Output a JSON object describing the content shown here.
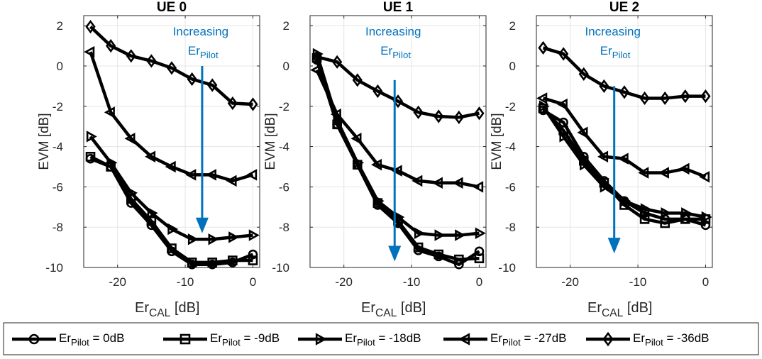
{
  "chart_data": [
    {
      "type": "line",
      "title": "UE 0",
      "xlabel": "Er",
      "xlabel_sub": "CAL",
      "xlabel_unit": " [dB]",
      "ylabel": "EVM [dB]",
      "xlim": [
        -25,
        1
      ],
      "ylim": [
        -10,
        2.5
      ],
      "xticks": [
        -20,
        -10,
        0
      ],
      "yticks": [
        2,
        0,
        -2,
        -4,
        -6,
        -8,
        -10
      ],
      "grid": true,
      "x": [
        -24,
        -21,
        -18,
        -15,
        -12,
        -9,
        -6,
        -3,
        0
      ],
      "series": [
        {
          "name": "Er_Pilot = 0dB",
          "marker": "circle",
          "values": [
            -4.6,
            -5.0,
            -6.8,
            -7.9,
            -9.2,
            -9.85,
            -9.85,
            -9.75,
            -9.35
          ]
        },
        {
          "name": "Er_Pilot = -9dB",
          "marker": "square",
          "values": [
            -4.5,
            -5.0,
            -6.6,
            -7.7,
            -9.05,
            -9.75,
            -9.75,
            -9.65,
            -9.65
          ]
        },
        {
          "name": "Er_Pilot = -18dB",
          "marker": "triangle-right",
          "values": [
            -3.5,
            -4.8,
            -6.3,
            -7.3,
            -8.1,
            -8.6,
            -8.6,
            -8.5,
            -8.4
          ]
        },
        {
          "name": "Er_Pilot = -27dB",
          "marker": "triangle-left",
          "values": [
            0.7,
            -2.3,
            -3.6,
            -4.5,
            -5.0,
            -5.4,
            -5.4,
            -5.7,
            -5.4
          ]
        },
        {
          "name": "Er_Pilot = -36dB",
          "marker": "diamond",
          "values": [
            1.95,
            1.0,
            0.5,
            0.25,
            -0.1,
            -0.65,
            -0.95,
            -1.85,
            -1.9
          ]
        }
      ],
      "annotation": {
        "text": "Increasing",
        "sub_base": "Er",
        "sub": "Pilot",
        "arrow_x": -7.5,
        "arrow_from": 0,
        "arrow_to": -8.3
      }
    },
    {
      "type": "line",
      "title": "UE 1",
      "xlabel": "Er",
      "xlabel_sub": "CAL",
      "xlabel_unit": " [dB]",
      "ylabel": "EVM [dB]",
      "xlim": [
        -25,
        1
      ],
      "ylim": [
        -10,
        2.5
      ],
      "xticks": [
        -20,
        -10,
        0
      ],
      "yticks": [
        2,
        0,
        -2,
        -4,
        -6,
        -8,
        -10
      ],
      "grid": true,
      "x": [
        -24,
        -21,
        -18,
        -15,
        -12,
        -9,
        -6,
        -3,
        0
      ],
      "series": [
        {
          "name": "Er_Pilot = 0dB",
          "marker": "circle",
          "values": [
            0.3,
            -2.9,
            -4.9,
            -6.9,
            -7.8,
            -9.15,
            -9.45,
            -9.85,
            -9.2
          ]
        },
        {
          "name": "Er_Pilot = -9dB",
          "marker": "square",
          "values": [
            0.4,
            -2.9,
            -4.9,
            -6.8,
            -7.7,
            -9.0,
            -9.35,
            -9.6,
            -9.55
          ]
        },
        {
          "name": "Er_Pilot = -18dB",
          "marker": "triangle-right",
          "values": [
            0.6,
            -2.7,
            -4.8,
            -6.7,
            -7.5,
            -8.3,
            -8.4,
            -8.4,
            -8.3
          ]
        },
        {
          "name": "Er_Pilot = -27dB",
          "marker": "triangle-left",
          "values": [
            -0.2,
            -2.4,
            -3.6,
            -4.9,
            -5.2,
            -5.7,
            -5.8,
            -5.8,
            -6.0
          ]
        },
        {
          "name": "Er_Pilot = -36dB",
          "marker": "diamond",
          "values": [
            0.45,
            0.2,
            -0.7,
            -1.25,
            -1.75,
            -2.3,
            -2.5,
            -2.55,
            -2.35
          ]
        }
      ],
      "annotation": {
        "text": "Increasing",
        "sub_base": "Er",
        "sub": "Pilot",
        "arrow_x": -12.5,
        "arrow_from": -0.7,
        "arrow_to": -9.7
      }
    },
    {
      "type": "line",
      "title": "UE 2",
      "xlabel": "Er",
      "xlabel_sub": "CAL",
      "xlabel_unit": " [dB]",
      "ylabel": "EVM [dB]",
      "xlim": [
        -25,
        1
      ],
      "ylim": [
        -10,
        2.5
      ],
      "xticks": [
        -20,
        -10,
        0
      ],
      "yticks": [
        2,
        0,
        -2,
        -4,
        -6,
        -8,
        -10
      ],
      "grid": true,
      "x": [
        -24,
        -21,
        -18,
        -15,
        -12,
        -9,
        -6,
        -3,
        0
      ],
      "series": [
        {
          "name": "Er_Pilot = 0dB",
          "marker": "circle",
          "values": [
            -2.2,
            -2.8,
            -4.5,
            -5.7,
            -6.7,
            -7.3,
            -7.6,
            -7.6,
            -7.9
          ]
        },
        {
          "name": "Er_Pilot = -9dB",
          "marker": "square",
          "values": [
            -2.1,
            -3.2,
            -4.7,
            -5.8,
            -6.9,
            -7.6,
            -7.8,
            -7.6,
            -7.6
          ]
        },
        {
          "name": "Er_Pilot = -18dB",
          "marker": "triangle-right",
          "values": [
            -2.0,
            -3.5,
            -4.9,
            -6.0,
            -6.7,
            -7.1,
            -7.3,
            -7.3,
            -7.5
          ]
        },
        {
          "name": "Er_Pilot = -27dB",
          "marker": "triangle-left",
          "values": [
            -1.6,
            -1.9,
            -3.3,
            -4.5,
            -4.6,
            -5.3,
            -5.3,
            -5.1,
            -5.5
          ]
        },
        {
          "name": "Er_Pilot = -36dB",
          "marker": "diamond",
          "values": [
            0.9,
            0.6,
            -0.4,
            -1.0,
            -1.3,
            -1.6,
            -1.6,
            -1.5,
            -1.5
          ]
        }
      ],
      "annotation": {
        "text": "Increasing",
        "sub_base": "Er",
        "sub": "Pilot",
        "arrow_x": -13.5,
        "arrow_from": -1.0,
        "arrow_to": -9.3
      }
    }
  ],
  "legend": {
    "placement": "bottom",
    "items": [
      {
        "base": "Er",
        "sub": "Pilot",
        "rest": " = 0dB",
        "marker": "circle"
      },
      {
        "base": "Er",
        "sub": "Pilot",
        "rest": " = -9dB",
        "marker": "square"
      },
      {
        "base": "Er",
        "sub": "Pilot",
        "rest": " = -18dB",
        "marker": "triangle-right"
      },
      {
        "base": "Er",
        "sub": "Pilot",
        "rest": " = -27dB",
        "marker": "triangle-left"
      },
      {
        "base": "Er",
        "sub": "Pilot",
        "rest": " = -36dB",
        "marker": "diamond"
      }
    ]
  },
  "colors": {
    "series": "#000000",
    "annotation": "#0072BD",
    "grid": "#e6e6e6"
  }
}
